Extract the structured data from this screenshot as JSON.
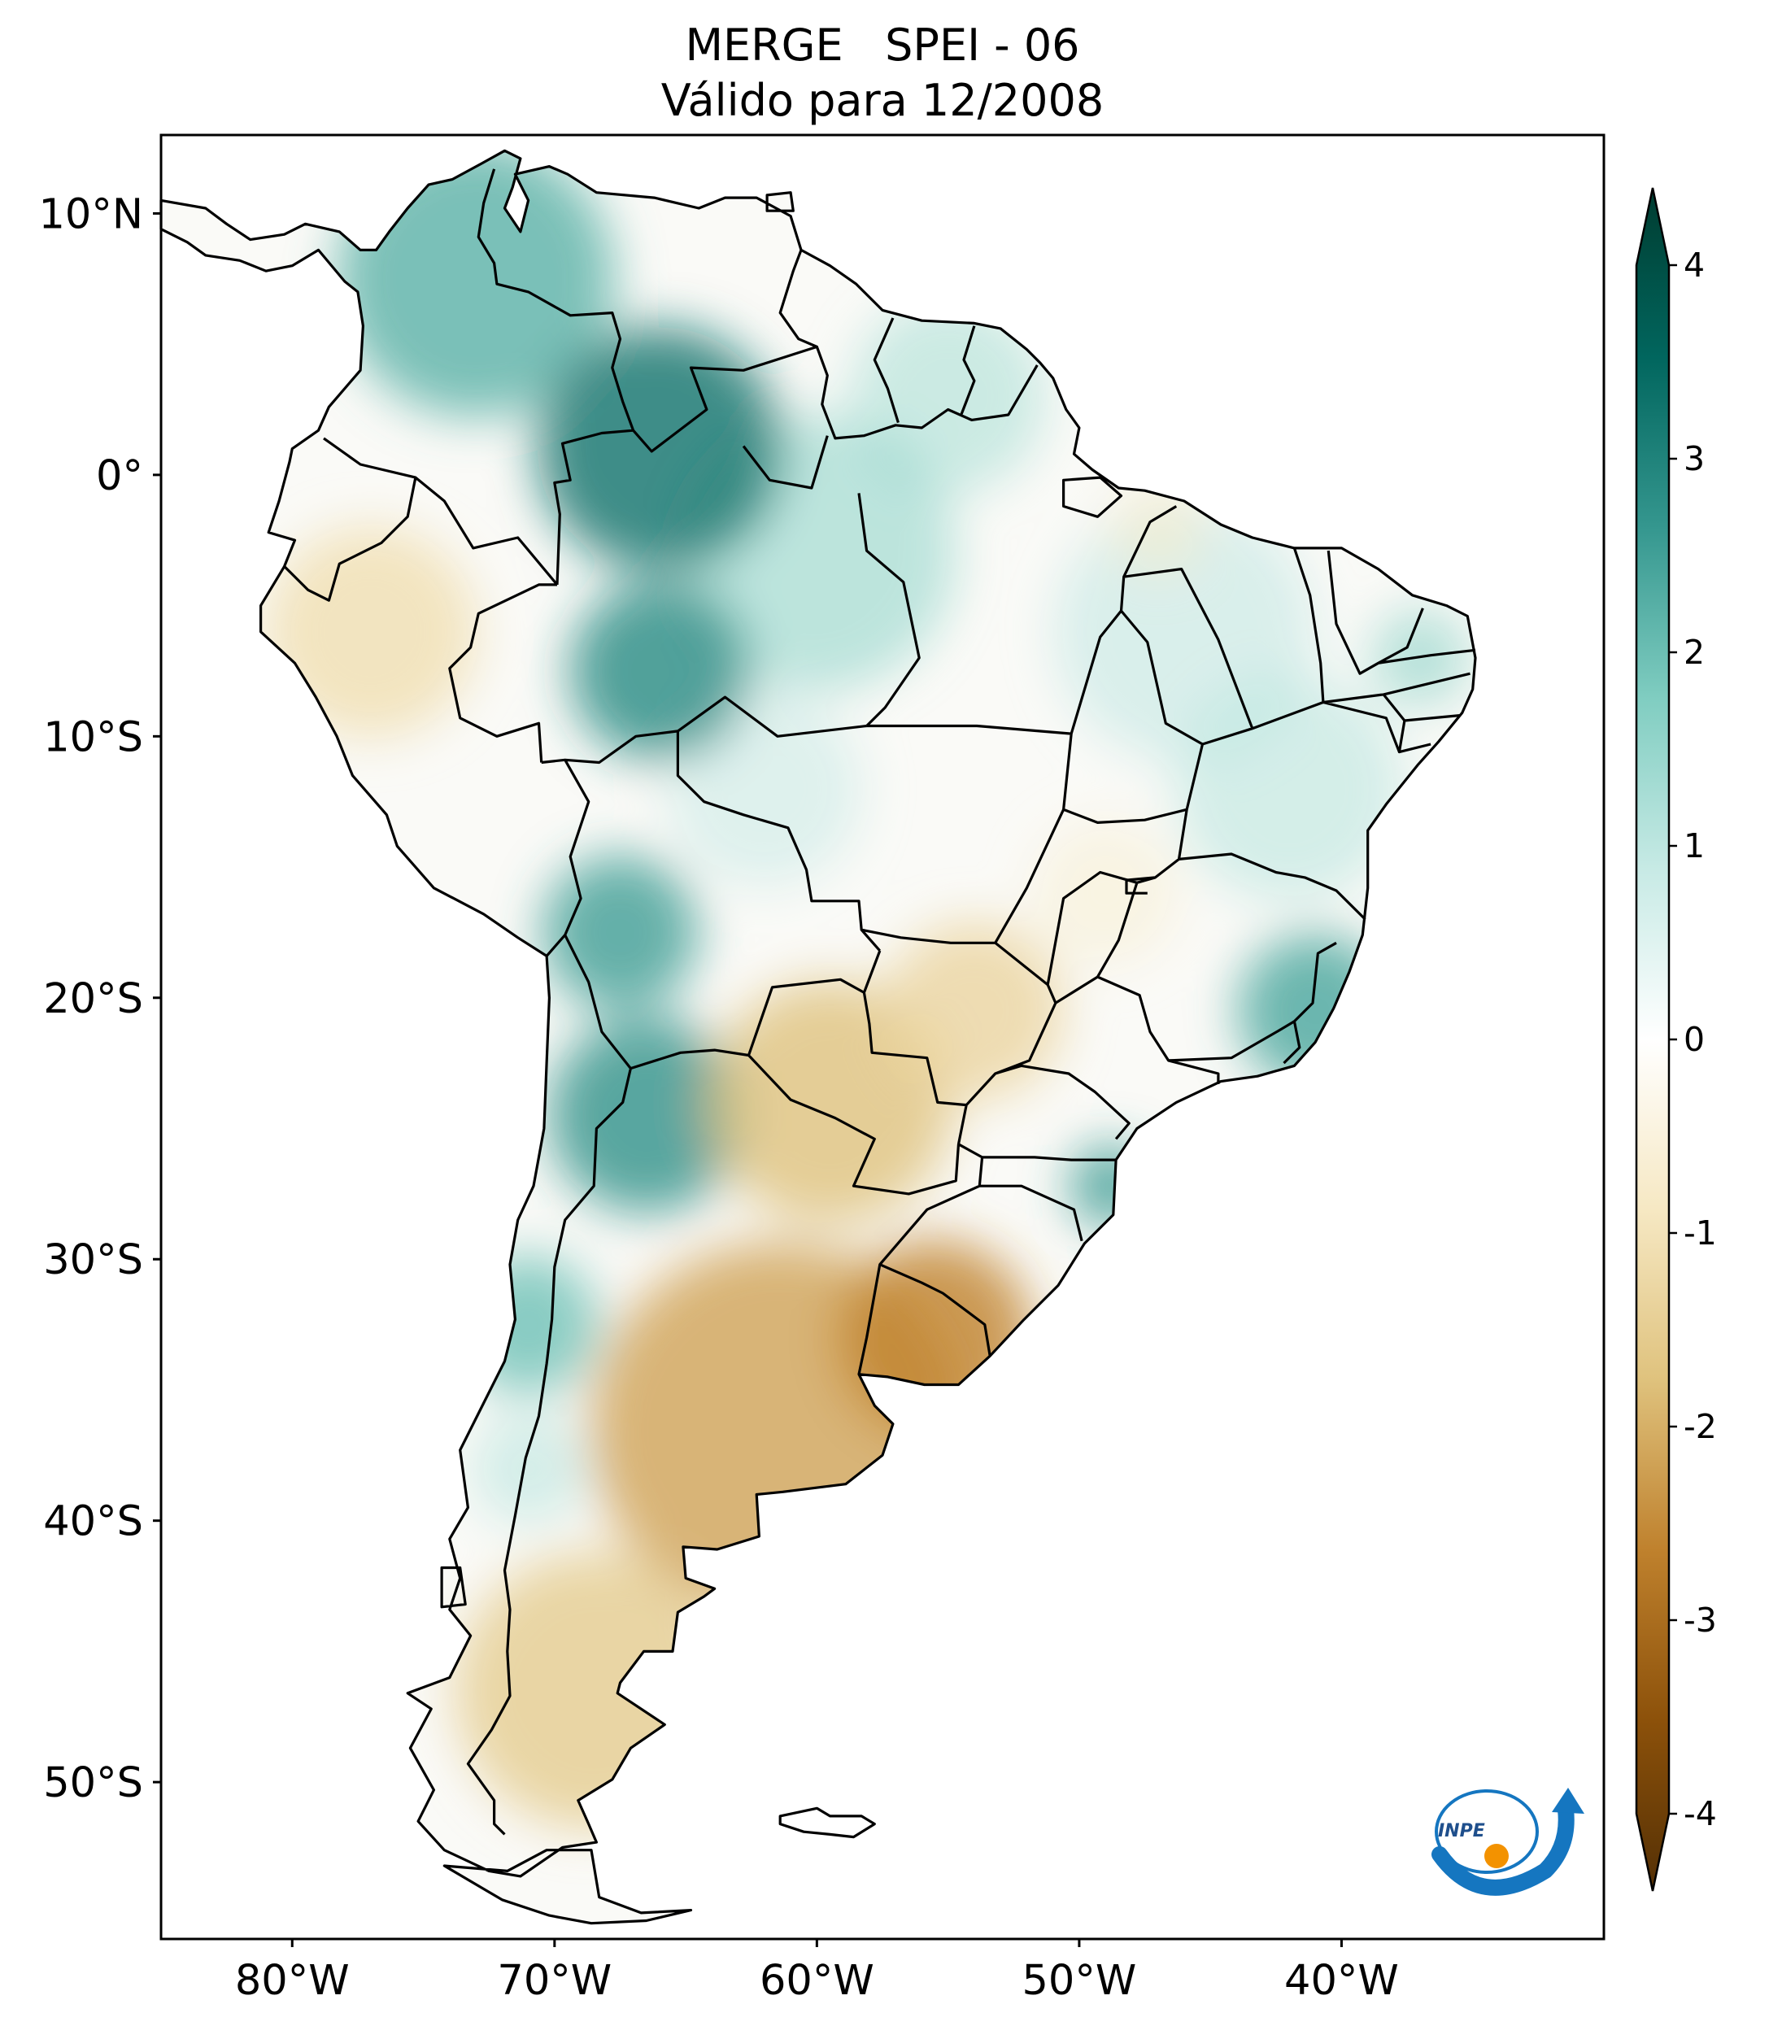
{
  "title": {
    "line1": "MERGE   SPEI - 06",
    "line2": "Válido para 12/2008"
  },
  "map": {
    "lon_range": [
      -85,
      -30
    ],
    "lat_range": [
      -56,
      13
    ],
    "lat_ticks": [
      {
        "value": 10,
        "label": "10°N"
      },
      {
        "value": 0,
        "label": "0°"
      },
      {
        "value": -10,
        "label": "10°S"
      },
      {
        "value": -20,
        "label": "20°S"
      },
      {
        "value": -30,
        "label": "30°S"
      },
      {
        "value": -40,
        "label": "40°S"
      },
      {
        "value": -50,
        "label": "50°S"
      }
    ],
    "lon_ticks": [
      {
        "value": -80,
        "label": "80°W"
      },
      {
        "value": -70,
        "label": "70°W"
      },
      {
        "value": -60,
        "label": "60°W"
      },
      {
        "value": -50,
        "label": "50°W"
      },
      {
        "value": -40,
        "label": "40°W"
      }
    ],
    "anomalies": [
      {
        "region": "Northern Colombia / Venezuela",
        "spei": 2.0
      },
      {
        "region": "Upper Amazon (Rio Negro)",
        "spei": 3.0
      },
      {
        "region": "Southwestern Amazonas",
        "spei": 2.6
      },
      {
        "region": "Bolivian Altiplano",
        "spei": 2.3
      },
      {
        "region": "Northwestern Argentina",
        "spei": 2.5
      },
      {
        "region": "Central Chile",
        "spei": 1.8
      },
      {
        "region": "Espirito Santo / Rio de Janeiro coast",
        "spei": 2.2
      },
      {
        "region": "Santa Catarina coast",
        "spei": 2.4
      },
      {
        "region": "Peru / Ecuador lowlands",
        "spei": -1.0
      },
      {
        "region": "Paraguay Chaco",
        "spei": -1.6
      },
      {
        "region": "Pampas / Buenos Aires",
        "spei": -2.0
      },
      {
        "region": "Uruguay",
        "spei": -2.4
      },
      {
        "region": "Patagonia",
        "spei": -1.4
      },
      {
        "region": "Mato Grosso do Sul",
        "spei": -1.2
      }
    ]
  },
  "colorbar": {
    "min": -4,
    "max": 4,
    "ticks": [
      {
        "value": 4,
        "label": "4"
      },
      {
        "value": 3,
        "label": "3"
      },
      {
        "value": 2,
        "label": "2"
      },
      {
        "value": 1,
        "label": "1"
      },
      {
        "value": 0,
        "label": "0"
      },
      {
        "value": -1,
        "label": "-1"
      },
      {
        "value": -2,
        "label": "-2"
      },
      {
        "value": -3,
        "label": "-3"
      },
      {
        "value": -4,
        "label": "-4"
      }
    ],
    "colors": [
      "#543005",
      "#8c510a",
      "#bf812d",
      "#dfc27d",
      "#f6e8c3",
      "#ffffff",
      "#c7eae5",
      "#80cdc1",
      "#35978f",
      "#01665e",
      "#003c30"
    ]
  },
  "logo": {
    "text": "INPE",
    "primary_color": "#1576c0",
    "accent_color": "#f39200"
  }
}
